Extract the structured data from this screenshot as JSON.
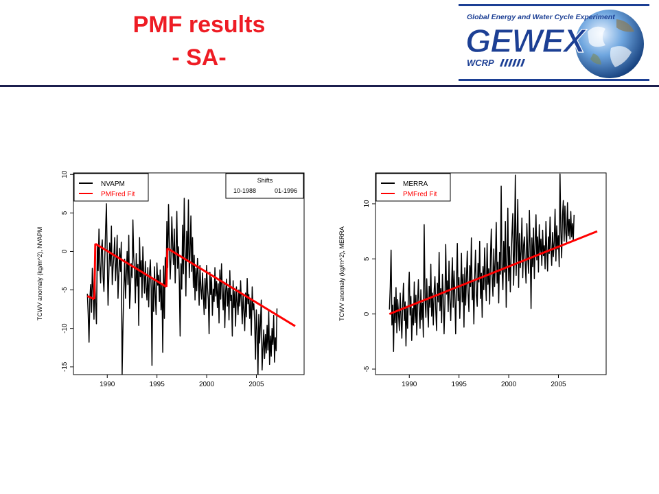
{
  "slide": {
    "title_line1": "PMF results",
    "title_line2": "- SA-",
    "title_color": "#ee1c24",
    "rule_color": "#1b1e4d"
  },
  "logo": {
    "text_top": "Global Energy and Water Cycle Experiment",
    "text_main": "GEWEX",
    "text_sub": "WCRP",
    "color_main": "#1c3f94",
    "icon": "earth-globe-icon"
  },
  "chart_data": [
    {
      "type": "line",
      "ylabel": "TCWV anomaly (kg/m^2), NVAPM",
      "xlabel": "",
      "xlim": [
        1986.6,
        2009.8
      ],
      "ylim": [
        -16,
        10.2
      ],
      "xticks": [
        1990,
        1995,
        2000,
        2005
      ],
      "yticks": [
        -15,
        -10,
        -5,
        0,
        5,
        10
      ],
      "legend": {
        "placement": "top-left",
        "entries": [
          {
            "label": "NVAPM",
            "color": "#000000"
          },
          {
            "label": "PMFred Fit",
            "color": "#ff0000"
          }
        ]
      },
      "shifts_box": {
        "placement": "top-right",
        "title": "Shifts",
        "values": [
          "10-1988",
          "01-1996"
        ]
      },
      "series": [
        {
          "name": "NVAPM",
          "color": "#000000",
          "x_start": 1988.0,
          "x_step": 0.0833,
          "values": [
            -5.5,
            -8.2,
            -11.8,
            -6.1,
            -4.3,
            -7.9,
            -2.2,
            -5.0,
            -8.8,
            -3.1,
            -6.7,
            -9.4,
            0.8,
            -2.5,
            2.9,
            -1.8,
            -4.1,
            0.2,
            1.5,
            -3.3,
            -5.2,
            -1.1,
            2.7,
            6.2,
            -0.5,
            -7.0,
            -2.9,
            1.1,
            -1.9,
            3.3,
            -4.3,
            -2.0,
            -0.6,
            1.8,
            -3.8,
            -1.5,
            2.1,
            -6.1,
            -3.0,
            0.4,
            -2.6,
            1.2,
            -16.0,
            -9.5,
            -4.6,
            -1.0,
            -6.1,
            -3.2,
            0.0,
            -4.3,
            2.1,
            -7.4,
            -5.1,
            -1.6,
            -3.4,
            4.1,
            -0.7,
            -2.5,
            -6.7,
            -0.3,
            -4.5,
            -1.7,
            -9.6,
            1.8,
            -3.3,
            -1.2,
            -6.0,
            0.6,
            -2.8,
            -5.4,
            -1.3,
            -4.7,
            -6.3,
            -2.1,
            -7.2,
            -3.0,
            -1.1,
            -4.8,
            -14.8,
            -3.6,
            -7.8,
            -2.0,
            -5.7,
            -8.2,
            -1.5,
            -4.4,
            -3.1,
            -6.5,
            -2.4,
            -7.6,
            -4.2,
            -13.1,
            -1.9,
            -8.7,
            -0.8,
            -4.4,
            3.9,
            -2.1,
            6.1,
            1.2,
            -3.6,
            -0.7,
            4.5,
            0.8,
            -1.7,
            2.9,
            -4.1,
            -0.2,
            5.2,
            -2.2,
            0.6,
            -3.8,
            -11.0,
            -1.6,
            -4.9,
            3.4,
            -2.9,
            6.9,
            0.1,
            -5.8,
            2.6,
            -1.3,
            6.7,
            -3.4,
            -0.1,
            4.6,
            -2.6,
            1.8,
            -4.7,
            -0.5,
            -6.3,
            -2.2,
            -5.1,
            -0.9,
            -3.3,
            -7.0,
            -1.8,
            -4.9,
            -6.2,
            -2.8,
            -5.7,
            -8.2,
            -3.5,
            -7.4,
            -1.8,
            -4.7,
            -6.2,
            -10.7,
            -2.7,
            -5.6,
            -3.4,
            -8.3,
            -4.9,
            -6.5,
            -2.1,
            -5.8,
            -3.9,
            -7.3,
            -4.2,
            -9.3,
            -2.4,
            -6.2,
            -1.6,
            -5.1,
            -7.6,
            -4.0,
            -9.9,
            -5.2,
            -3.6,
            -7.1,
            -4.8,
            -8.9,
            -2.5,
            -6.4,
            -5.7,
            -11.0,
            -3.8,
            -7.3,
            -5.2,
            -9.7,
            -4.6,
            -6.6,
            -8.2,
            -5.0,
            -7.1,
            -3.8,
            -6.6,
            -9.4,
            -5.6,
            -7.7,
            -10.3,
            -5.4,
            -8.5,
            -3.5,
            -6.8,
            -5.6,
            -8.7,
            -6.3,
            -10.9,
            -4.6,
            -7.6,
            -6.8,
            -9.1,
            -14.0,
            -7.6,
            -10.3,
            -16.0,
            -8.2,
            -11.9,
            -9.3,
            -6.3,
            -15.4,
            -12.6,
            -10.2,
            -13.9,
            -10.8,
            -13.2,
            -9.6,
            -12.8,
            -7.7,
            -14.7,
            -11.0,
            -13.6,
            -10.0,
            -12.1,
            -8.3,
            -14.4,
            -11.2,
            -12.9,
            -7.4
          ]
        },
        {
          "name": "PMFred Fit",
          "color": "#ff0000",
          "segments": [
            [
              [
                1988.0,
                -5.8
              ],
              [
                1988.7,
                -6.2
              ]
            ],
            [
              [
                1988.8,
                1.0
              ],
              [
                1995.95,
                -4.6
              ]
            ],
            [
              [
                1996.05,
                0.4
              ],
              [
                2008.9,
                -9.7
              ]
            ]
          ]
        }
      ]
    },
    {
      "type": "line",
      "ylabel": "TCWV anomaly (kg/m^2), MERRA",
      "xlabel": "",
      "xlim": [
        1986.6,
        2009.8
      ],
      "ylim": [
        -5.5,
        12.8
      ],
      "xticks": [
        1990,
        1995,
        2000,
        2005
      ],
      "yticks": [
        -5,
        0,
        5,
        10
      ],
      "legend": {
        "placement": "top-left",
        "entries": [
          {
            "label": "MERRA",
            "color": "#000000"
          },
          {
            "label": "PMFred Fit",
            "color": "#ff0000"
          }
        ]
      },
      "series": [
        {
          "name": "MERRA",
          "color": "#000000",
          "x_start": 1988.0,
          "x_step": 0.0833,
          "values": [
            0.4,
            2.5,
            5.8,
            -1.0,
            0.8,
            -3.4,
            1.5,
            -0.8,
            2.4,
            -1.7,
            1.3,
            0.1,
            -1.5,
            1.9,
            -0.4,
            -2.2,
            0.9,
            2.8,
            -0.6,
            1.1,
            -2.9,
            0.7,
            -1.3,
            2.0,
            3.8,
            -0.1,
            1.6,
            -2.4,
            0.5,
            -1.0,
            2.9,
            -0.8,
            1.7,
            -1.9,
            0.9,
            3.1,
            0.2,
            -1.3,
            2.2,
            -0.5,
            1.0,
            -2.1,
            8.1,
            1.4,
            -0.3,
            3.2,
            0.8,
            -1.2,
            2.5,
            0.6,
            4.5,
            -0.2,
            1.9,
            -1.0,
            2.1,
            3.4,
            0.4,
            -1.5,
            2.8,
            1.1,
            5.6,
            0.3,
            2.3,
            -0.8,
            3.6,
            1.5,
            -1.8,
            0.9,
            6.3,
            1.8,
            3.0,
            0.2,
            4.8,
            1.4,
            -0.6,
            2.6,
            5.1,
            0.6,
            3.9,
            1.7,
            -1.8,
            2.9,
            6.4,
            1.2,
            3.3,
            -0.4,
            2.0,
            5.5,
            1.1,
            3.6,
            -1.2,
            4.2,
            0.8,
            3.2,
            5.7,
            1.9,
            0.2,
            4.4,
            2.5,
            6.9,
            1.3,
            3.0,
            -0.9,
            3.4,
            5.8,
            1.8,
            0.7,
            4.6,
            2.9,
            6.6,
            1.4,
            3.7,
            -0.3,
            4.3,
            2.2,
            6.0,
            3.1,
            1.2,
            6.4,
            2.7,
            4.1,
            0.9,
            5.3,
            7.7,
            3.4,
            1.6,
            5.9,
            2.5,
            4.9,
            8.3,
            2.8,
            4.7,
            1.0,
            5.6,
            3.6,
            11.6,
            4.0,
            2.2,
            6.6,
            3.8,
            8.4,
            0.6,
            4.9,
            9.6,
            3.0,
            6.1,
            2.0,
            5.2,
            7.3,
            9.1,
            2.6,
            5.8,
            12.6,
            3.5,
            6.7,
            10.4,
            2.4,
            7.3,
            4.2,
            5.7,
            8.7,
            3.3,
            6.2,
            7.0,
            4.6,
            2.8,
            8.2,
            5.3,
            3.7,
            9.4,
            5.8,
            0.5,
            6.9,
            4.3,
            7.8,
            3.2,
            6.4,
            9.0,
            4.9,
            7.0,
            3.8,
            8.1,
            5.6,
            6.8,
            4.4,
            7.6,
            5.3,
            6.2,
            4.1,
            8.4,
            5.8,
            3.9,
            7.0,
            5.5,
            8.8,
            6.0,
            4.4,
            7.4,
            5.2,
            6.6,
            9.5,
            4.8,
            8.0,
            5.9,
            7.1,
            4.3,
            12.7,
            7.6,
            5.1,
            8.9,
            10.3,
            6.6,
            9.8,
            7.4,
            6.5,
            10.1,
            7.1,
            8.6,
            6.8,
            9.3,
            7.0,
            8.2,
            6.6,
            9.0
          ]
        },
        {
          "name": "PMFred Fit",
          "color": "#ff0000",
          "segments": [
            [
              [
                1988.0,
                0.0
              ],
              [
                2008.9,
                7.5
              ]
            ]
          ]
        }
      ]
    }
  ]
}
